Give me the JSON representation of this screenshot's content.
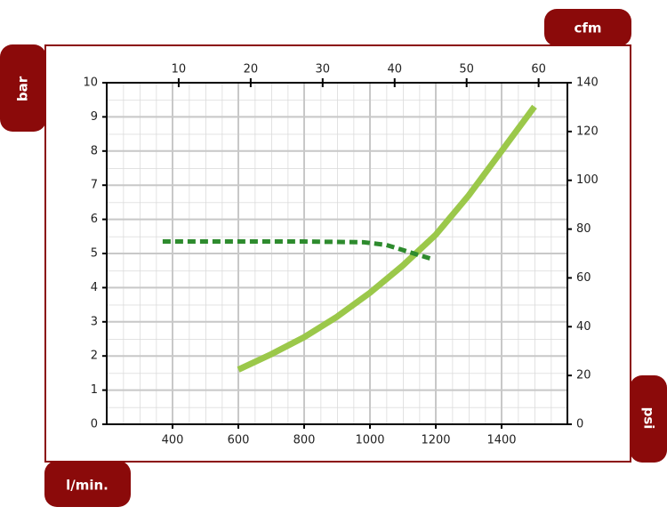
{
  "chart_data": {
    "type": "line",
    "x_label": "l/min.",
    "x2_label": "cfm",
    "y_label": "bar",
    "y2_label": "psi",
    "xlim": [
      200,
      1600
    ],
    "xticks": [
      400,
      600,
      800,
      1000,
      1200,
      1400
    ],
    "x2lim": [
      0,
      64
    ],
    "x2ticks": [
      10,
      20,
      30,
      40,
      50,
      60
    ],
    "ylim": [
      0,
      10
    ],
    "yticks": [
      0,
      1,
      2,
      3,
      4,
      5,
      6,
      7,
      8,
      9,
      10
    ],
    "y2lim": [
      0,
      140
    ],
    "y2ticks": [
      0,
      20,
      40,
      60,
      80,
      100,
      120,
      140
    ],
    "grid": true,
    "series": [
      {
        "color": "#9bc84a",
        "dashed": false,
        "x": [
          600,
          700,
          800,
          900,
          1000,
          1100,
          1200,
          1300,
          1400,
          1500
        ],
        "values": [
          1.6,
          2.05,
          2.55,
          3.15,
          3.85,
          4.65,
          5.55,
          6.7,
          8.0,
          9.3
        ]
      },
      {
        "color": "#2e8b2e",
        "dashed": true,
        "x": [
          370,
          600,
          800,
          980,
          1050,
          1100,
          1150,
          1185
        ],
        "values": [
          5.35,
          5.35,
          5.35,
          5.33,
          5.25,
          5.1,
          4.95,
          4.85
        ]
      }
    ]
  }
}
